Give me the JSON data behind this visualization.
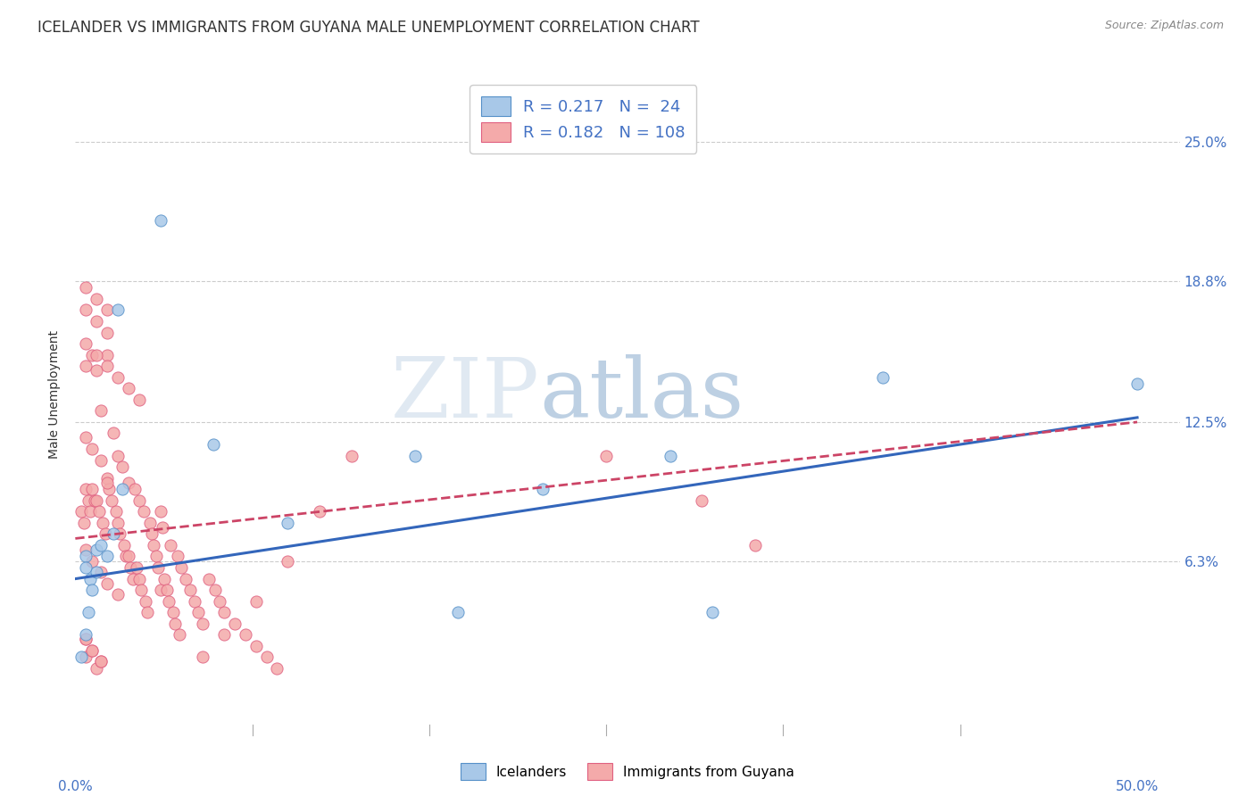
{
  "title": "ICELANDER VS IMMIGRANTS FROM GUYANA MALE UNEMPLOYMENT CORRELATION CHART",
  "source": "Source: ZipAtlas.com",
  "ylabel": "Male Unemployment",
  "yticks": [
    0.0,
    0.063,
    0.125,
    0.188,
    0.25
  ],
  "ytick_labels": [
    "",
    "6.3%",
    "12.5%",
    "18.8%",
    "25.0%"
  ],
  "xlim": [
    0.0,
    0.52
  ],
  "ylim": [
    -0.01,
    0.285
  ],
  "watermark_zip": "ZIP",
  "watermark_atlas": "atlas",
  "legend_blue_R": "0.217",
  "legend_blue_N": " 24",
  "legend_pink_R": "0.182",
  "legend_pink_N": "108",
  "legend_label_blue": "Icelanders",
  "legend_label_pink": "Immigrants from Guyana",
  "blue_color": "#a8c8e8",
  "pink_color": "#f4aaaa",
  "blue_edge_color": "#5590c8",
  "pink_edge_color": "#e06080",
  "blue_line_color": "#3366bb",
  "pink_line_color": "#cc4466",
  "title_color": "#333333",
  "source_color": "#888888",
  "tick_color": "#555555",
  "right_tick_color": "#4472c4",
  "grid_color": "#cccccc",
  "blue_scatter_x": [
    0.04,
    0.02,
    0.005,
    0.005,
    0.007,
    0.01,
    0.012,
    0.015,
    0.018,
    0.008,
    0.003,
    0.005,
    0.006,
    0.01,
    0.022,
    0.065,
    0.1,
    0.16,
    0.18,
    0.3,
    0.38,
    0.5,
    0.28,
    0.22
  ],
  "blue_scatter_y": [
    0.215,
    0.175,
    0.065,
    0.06,
    0.055,
    0.068,
    0.07,
    0.065,
    0.075,
    0.05,
    0.02,
    0.03,
    0.04,
    0.058,
    0.095,
    0.115,
    0.08,
    0.11,
    0.04,
    0.04,
    0.145,
    0.142,
    0.11,
    0.095
  ],
  "pink_scatter_x": [
    0.003,
    0.004,
    0.005,
    0.005,
    0.006,
    0.007,
    0.008,
    0.008,
    0.009,
    0.01,
    0.01,
    0.011,
    0.012,
    0.013,
    0.014,
    0.015,
    0.015,
    0.016,
    0.017,
    0.018,
    0.019,
    0.02,
    0.02,
    0.021,
    0.022,
    0.023,
    0.024,
    0.025,
    0.025,
    0.026,
    0.027,
    0.028,
    0.029,
    0.03,
    0.03,
    0.031,
    0.032,
    0.033,
    0.034,
    0.035,
    0.036,
    0.037,
    0.038,
    0.039,
    0.04,
    0.04,
    0.041,
    0.042,
    0.043,
    0.044,
    0.045,
    0.046,
    0.047,
    0.048,
    0.049,
    0.05,
    0.052,
    0.054,
    0.056,
    0.058,
    0.06,
    0.063,
    0.066,
    0.068,
    0.07,
    0.075,
    0.08,
    0.085,
    0.09,
    0.095,
    0.005,
    0.01,
    0.015,
    0.02,
    0.025,
    0.03,
    0.005,
    0.01,
    0.015,
    0.02,
    0.005,
    0.01,
    0.015,
    0.005,
    0.01,
    0.25,
    0.295,
    0.32,
    0.005,
    0.008,
    0.012,
    0.005,
    0.008,
    0.012,
    0.015,
    0.005,
    0.008,
    0.012,
    0.015,
    0.005,
    0.008,
    0.012,
    0.13,
    0.115,
    0.1,
    0.085,
    0.07,
    0.06
  ],
  "pink_scatter_y": [
    0.085,
    0.08,
    0.15,
    0.095,
    0.09,
    0.085,
    0.155,
    0.095,
    0.09,
    0.148,
    0.09,
    0.085,
    0.13,
    0.08,
    0.075,
    0.155,
    0.1,
    0.095,
    0.09,
    0.12,
    0.085,
    0.11,
    0.08,
    0.075,
    0.105,
    0.07,
    0.065,
    0.098,
    0.065,
    0.06,
    0.055,
    0.095,
    0.06,
    0.09,
    0.055,
    0.05,
    0.085,
    0.045,
    0.04,
    0.08,
    0.075,
    0.07,
    0.065,
    0.06,
    0.085,
    0.05,
    0.078,
    0.055,
    0.05,
    0.045,
    0.07,
    0.04,
    0.035,
    0.065,
    0.03,
    0.06,
    0.055,
    0.05,
    0.045,
    0.04,
    0.035,
    0.055,
    0.05,
    0.045,
    0.04,
    0.035,
    0.03,
    0.025,
    0.02,
    0.015,
    0.16,
    0.155,
    0.15,
    0.145,
    0.14,
    0.135,
    0.175,
    0.17,
    0.165,
    0.048,
    0.185,
    0.18,
    0.175,
    0.02,
    0.015,
    0.11,
    0.09,
    0.07,
    0.028,
    0.023,
    0.018,
    0.068,
    0.063,
    0.058,
    0.053,
    0.118,
    0.113,
    0.108,
    0.098,
    0.028,
    0.023,
    0.018,
    0.11,
    0.085,
    0.063,
    0.045,
    0.03,
    0.02
  ],
  "title_fontsize": 12,
  "axis_label_fontsize": 10,
  "tick_fontsize": 11,
  "source_fontsize": 9
}
